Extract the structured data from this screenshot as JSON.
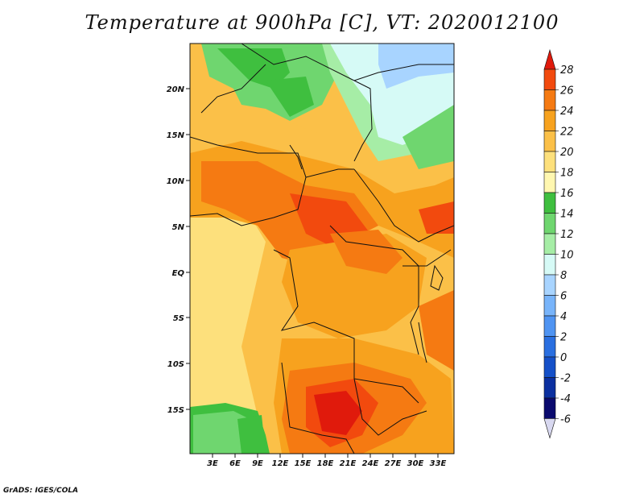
{
  "title": "Temperature at 900hPa [C], VT: 2020012100",
  "credit": "GrADS: IGES/COLA",
  "axes": {
    "lat_labels": [
      "20N",
      "15N",
      "10N",
      "5N",
      "EQ",
      "5S",
      "10S",
      "15S"
    ],
    "lon_labels": [
      "3E",
      "6E",
      "9E",
      "12E",
      "15E",
      "18E",
      "21E",
      "24E",
      "27E",
      "30E",
      "33E"
    ]
  },
  "colorbar": {
    "levels": [
      "28",
      "26",
      "24",
      "22",
      "20",
      "18",
      "16",
      "14",
      "12",
      "10",
      "8",
      "6",
      "4",
      "2",
      "0",
      "-2",
      "-4",
      "-6"
    ],
    "colors": [
      "#e01a0c",
      "#f24a0e",
      "#f57a12",
      "#f7a21e",
      "#fbc048",
      "#fde07c",
      "#fff7b0",
      "#3fbf3f",
      "#6fd66f",
      "#a6eda6",
      "#d6faf6",
      "#a8d4ff",
      "#78b4fa",
      "#4f94f2",
      "#2a6fe0",
      "#1550c8",
      "#0b30a0",
      "#0a0a6e",
      "#d8d8f0"
    ]
  }
}
